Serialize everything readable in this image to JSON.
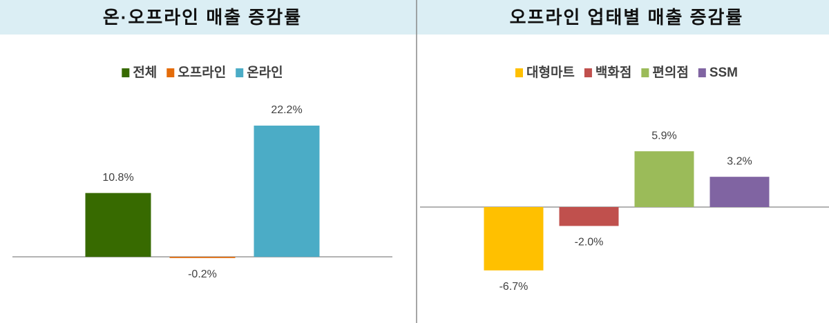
{
  "chart_data": [
    {
      "type": "bar",
      "title": "온·오프라인 매출 증감률",
      "series": [
        {
          "name": "전체",
          "color": "#376a00",
          "values": [
            10.8
          ],
          "value_labels": [
            "10.8%"
          ]
        },
        {
          "name": "오프라인",
          "color": "#e46c0a",
          "values": [
            -0.2
          ],
          "value_labels": [
            "-0.2%"
          ]
        },
        {
          "name": "온라인",
          "color": "#4bacc6",
          "values": [
            22.2
          ],
          "value_labels": [
            "22.2%"
          ]
        }
      ],
      "ylim": [
        -5,
        25
      ],
      "legend": "top"
    },
    {
      "type": "bar",
      "title": "오프라인 업태별 매출 증감률",
      "series": [
        {
          "name": "대형마트",
          "color": "#ffc000",
          "values": [
            -6.7
          ],
          "value_labels": [
            "-6.7%"
          ]
        },
        {
          "name": "백화점",
          "color": "#c0504d",
          "values": [
            -2.0
          ],
          "value_labels": [
            "-2.0%"
          ]
        },
        {
          "name": "편의점",
          "color": "#9bbb59",
          "values": [
            5.9
          ],
          "value_labels": [
            "5.9%"
          ]
        },
        {
          "name": "SSM",
          "color": "#8064a2",
          "values": [
            3.2
          ],
          "value_labels": [
            "3.2%"
          ]
        }
      ],
      "ylim": [
        -10,
        10
      ],
      "legend": "top"
    }
  ]
}
